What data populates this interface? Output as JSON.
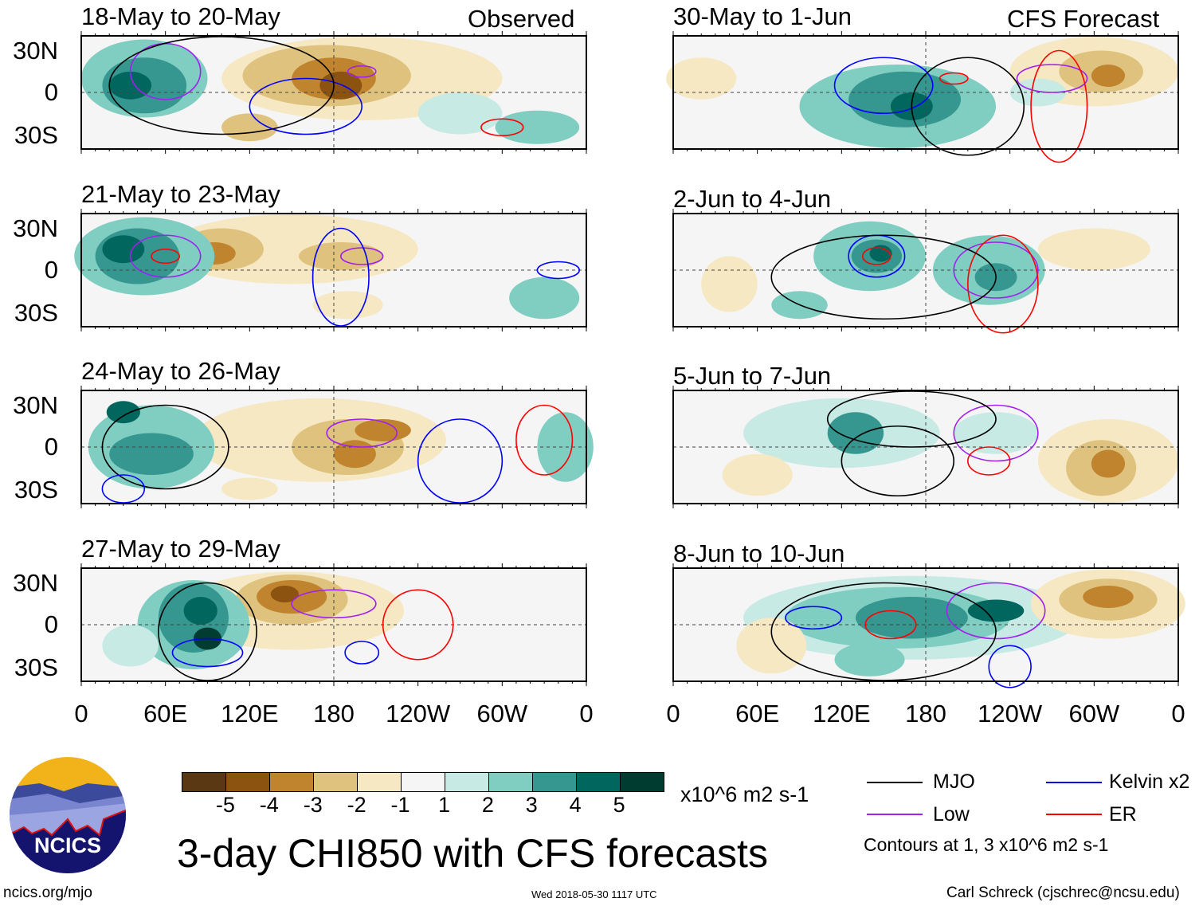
{
  "colors": {
    "levels": [
      "#5a3814",
      "#8c5210",
      "#c0832e",
      "#dfc27d",
      "#f6e8c3",
      "#f5f5f5",
      "#c7eae5",
      "#80cdc1",
      "#35978f",
      "#01665e",
      "#003c30"
    ],
    "mjo": "#000000",
    "kelvin": "#0000ff",
    "low": "#a020f0",
    "er": "#ff0000"
  },
  "headers": {
    "observed": "Observed",
    "forecast": "CFS Forecast"
  },
  "panels": [
    {
      "title": "18-May to 20-May"
    },
    {
      "title": "21-May to 23-May"
    },
    {
      "title": "24-May to 26-May"
    },
    {
      "title": "27-May to 29-May"
    },
    {
      "title": "30-May to 1-Jun"
    },
    {
      "title": "2-Jun to 4-Jun"
    },
    {
      "title": "5-Jun to 7-Jun"
    },
    {
      "title": "8-Jun to 10-Jun"
    }
  ],
  "lat_labels": [
    "30N",
    "0",
    "30S"
  ],
  "lon_labels": [
    "0",
    "60E",
    "120E",
    "180",
    "120W",
    "60W",
    "0"
  ],
  "colorbar": {
    "ticks": [
      "-5",
      "-4",
      "-3",
      "-2",
      "-1",
      "1",
      "2",
      "3",
      "4",
      "5"
    ],
    "units": "x10^6 m2 s-1"
  },
  "title": "3-day CHI850 with CFS forecasts",
  "legend": {
    "mjo": "MJO",
    "kelvin": "Kelvin x2",
    "low": "Low",
    "er": "ER",
    "note": "Contours at 1, 3 x10^6 m2 s-1"
  },
  "footer": {
    "url": "ncics.org/mjo",
    "timestamp": "Wed 2018-05-30 1117 UTC",
    "author": "Carl Schreck (cjschrec@ncsu.edu)"
  },
  "logo": {
    "text": "NCICS"
  }
}
